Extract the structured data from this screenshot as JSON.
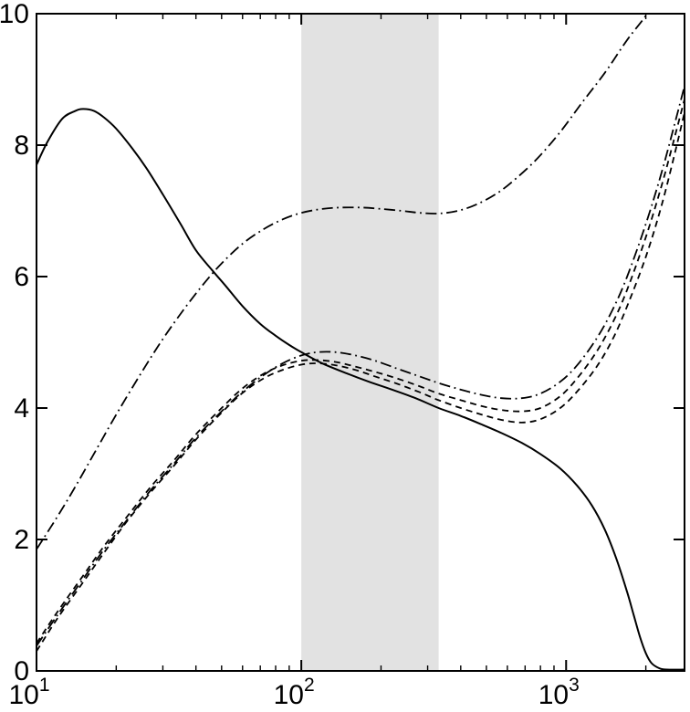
{
  "figure": {
    "background": "#ffffff",
    "axis_color": "#000000"
  },
  "chart_data": {
    "type": "line",
    "title": "",
    "xlabel": "",
    "ylabel": "",
    "x_scale": "log",
    "xlim": [
      10,
      2800
    ],
    "ylim": [
      0,
      10
    ],
    "grid": false,
    "legend": "none",
    "background": "#ffffff",
    "axis_color": "#000000",
    "shaded_band": {
      "x0": 100,
      "x1": 330,
      "color": "#e2e2e2"
    },
    "x_major_ticks": [
      {
        "value": 10,
        "base": "10",
        "exp": "1"
      },
      {
        "value": 100,
        "base": "10",
        "exp": "2"
      },
      {
        "value": 1000,
        "base": "10",
        "exp": "3"
      }
    ],
    "x_minor_ticks": [
      20,
      30,
      40,
      50,
      60,
      70,
      80,
      90,
      200,
      300,
      400,
      500,
      600,
      700,
      800,
      900,
      2000
    ],
    "y_ticks": [
      {
        "value": 0,
        "label": "0"
      },
      {
        "value": 2,
        "label": "2"
      },
      {
        "value": 4,
        "label": "4"
      },
      {
        "value": 6,
        "label": "6"
      },
      {
        "value": 8,
        "label": "8"
      },
      {
        "value": 10,
        "label": "10"
      }
    ],
    "series": [
      {
        "name": "solid-curve",
        "style": "solid",
        "color": "#000000",
        "width": 2,
        "points": [
          [
            10,
            7.7
          ],
          [
            11,
            8.05
          ],
          [
            12.5,
            8.4
          ],
          [
            14,
            8.52
          ],
          [
            15,
            8.55
          ],
          [
            16.5,
            8.52
          ],
          [
            18,
            8.42
          ],
          [
            20,
            8.25
          ],
          [
            23,
            7.95
          ],
          [
            26,
            7.65
          ],
          [
            30,
            7.25
          ],
          [
            35,
            6.8
          ],
          [
            40,
            6.4
          ],
          [
            46,
            6.1
          ],
          [
            52,
            5.85
          ],
          [
            60,
            5.55
          ],
          [
            70,
            5.28
          ],
          [
            80,
            5.1
          ],
          [
            90,
            4.96
          ],
          [
            100,
            4.85
          ],
          [
            120,
            4.68
          ],
          [
            150,
            4.52
          ],
          [
            180,
            4.4
          ],
          [
            220,
            4.28
          ],
          [
            270,
            4.15
          ],
          [
            330,
            4.0
          ],
          [
            400,
            3.88
          ],
          [
            480,
            3.75
          ],
          [
            570,
            3.62
          ],
          [
            680,
            3.47
          ],
          [
            800,
            3.3
          ],
          [
            950,
            3.08
          ],
          [
            1100,
            2.82
          ],
          [
            1250,
            2.52
          ],
          [
            1400,
            2.15
          ],
          [
            1550,
            1.7
          ],
          [
            1700,
            1.2
          ],
          [
            1800,
            0.85
          ],
          [
            1900,
            0.52
          ],
          [
            2000,
            0.27
          ],
          [
            2100,
            0.12
          ],
          [
            2250,
            0.04
          ],
          [
            2400,
            0.02
          ],
          [
            2800,
            0.02
          ]
        ]
      },
      {
        "name": "dashdot-upper-curve",
        "style": "dashdot",
        "color": "#000000",
        "width": 1.8,
        "points": [
          [
            10,
            1.85
          ],
          [
            12,
            2.35
          ],
          [
            14,
            2.8
          ],
          [
            17,
            3.4
          ],
          [
            20,
            3.9
          ],
          [
            25,
            4.55
          ],
          [
            30,
            5.05
          ],
          [
            36,
            5.5
          ],
          [
            43,
            5.9
          ],
          [
            50,
            6.2
          ],
          [
            60,
            6.5
          ],
          [
            72,
            6.72
          ],
          [
            85,
            6.87
          ],
          [
            100,
            6.97
          ],
          [
            120,
            7.03
          ],
          [
            140,
            7.05
          ],
          [
            170,
            7.05
          ],
          [
            200,
            7.03
          ],
          [
            240,
            7.0
          ],
          [
            280,
            6.97
          ],
          [
            330,
            6.96
          ],
          [
            390,
            7.0
          ],
          [
            460,
            7.1
          ],
          [
            550,
            7.27
          ],
          [
            650,
            7.5
          ],
          [
            780,
            7.8
          ],
          [
            950,
            8.2
          ],
          [
            1150,
            8.65
          ],
          [
            1400,
            9.1
          ],
          [
            1700,
            9.6
          ],
          [
            2000,
            9.97
          ],
          [
            2300,
            10.35
          ]
        ]
      },
      {
        "name": "dashdot-lower-curve",
        "style": "dashdot",
        "color": "#000000",
        "width": 1.8,
        "points": [
          [
            10,
            0.38
          ],
          [
            12,
            0.85
          ],
          [
            15,
            1.4
          ],
          [
            18,
            1.85
          ],
          [
            22,
            2.3
          ],
          [
            27,
            2.75
          ],
          [
            33,
            3.15
          ],
          [
            40,
            3.55
          ],
          [
            50,
            3.95
          ],
          [
            60,
            4.25
          ],
          [
            72,
            4.5
          ],
          [
            85,
            4.68
          ],
          [
            100,
            4.8
          ],
          [
            115,
            4.85
          ],
          [
            135,
            4.85
          ],
          [
            160,
            4.8
          ],
          [
            190,
            4.72
          ],
          [
            230,
            4.6
          ],
          [
            280,
            4.48
          ],
          [
            330,
            4.38
          ],
          [
            400,
            4.28
          ],
          [
            480,
            4.2
          ],
          [
            570,
            4.15
          ],
          [
            680,
            4.15
          ],
          [
            800,
            4.22
          ],
          [
            950,
            4.4
          ],
          [
            1100,
            4.65
          ],
          [
            1300,
            5.05
          ],
          [
            1500,
            5.5
          ],
          [
            1700,
            6.0
          ],
          [
            2000,
            6.8
          ],
          [
            2300,
            7.6
          ],
          [
            2600,
            8.4
          ],
          [
            2800,
            8.9
          ]
        ]
      },
      {
        "name": "dashed-upper-curve",
        "style": "dashed",
        "color": "#000000",
        "width": 1.8,
        "points": [
          [
            10,
            0.42
          ],
          [
            12,
            0.9
          ],
          [
            15,
            1.45
          ],
          [
            18,
            1.9
          ],
          [
            22,
            2.35
          ],
          [
            27,
            2.8
          ],
          [
            33,
            3.2
          ],
          [
            40,
            3.6
          ],
          [
            50,
            4.0
          ],
          [
            60,
            4.3
          ],
          [
            72,
            4.52
          ],
          [
            85,
            4.65
          ],
          [
            100,
            4.72
          ],
          [
            115,
            4.73
          ],
          [
            135,
            4.7
          ],
          [
            160,
            4.63
          ],
          [
            190,
            4.55
          ],
          [
            230,
            4.45
          ],
          [
            280,
            4.33
          ],
          [
            330,
            4.22
          ],
          [
            400,
            4.12
          ],
          [
            480,
            4.03
          ],
          [
            570,
            3.97
          ],
          [
            680,
            3.95
          ],
          [
            800,
            4.0
          ],
          [
            950,
            4.18
          ],
          [
            1100,
            4.45
          ],
          [
            1300,
            4.85
          ],
          [
            1500,
            5.3
          ],
          [
            1700,
            5.8
          ],
          [
            2000,
            6.6
          ],
          [
            2300,
            7.4
          ],
          [
            2600,
            8.2
          ],
          [
            2800,
            8.7
          ]
        ]
      },
      {
        "name": "dashed-lower-curve",
        "style": "dashed",
        "color": "#000000",
        "width": 1.8,
        "points": [
          [
            10,
            0.3
          ],
          [
            12,
            0.8
          ],
          [
            15,
            1.35
          ],
          [
            18,
            1.8
          ],
          [
            22,
            2.28
          ],
          [
            27,
            2.72
          ],
          [
            33,
            3.12
          ],
          [
            40,
            3.52
          ],
          [
            50,
            3.93
          ],
          [
            60,
            4.23
          ],
          [
            72,
            4.45
          ],
          [
            85,
            4.58
          ],
          [
            100,
            4.66
          ],
          [
            115,
            4.68
          ],
          [
            135,
            4.65
          ],
          [
            160,
            4.58
          ],
          [
            190,
            4.48
          ],
          [
            230,
            4.37
          ],
          [
            280,
            4.24
          ],
          [
            330,
            4.12
          ],
          [
            400,
            4.0
          ],
          [
            480,
            3.9
          ],
          [
            570,
            3.82
          ],
          [
            680,
            3.78
          ],
          [
            800,
            3.83
          ],
          [
            950,
            4.0
          ],
          [
            1100,
            4.25
          ],
          [
            1300,
            4.62
          ],
          [
            1500,
            5.05
          ],
          [
            1700,
            5.55
          ],
          [
            2000,
            6.3
          ],
          [
            2300,
            7.1
          ],
          [
            2600,
            7.95
          ],
          [
            2800,
            8.5
          ]
        ]
      }
    ]
  }
}
